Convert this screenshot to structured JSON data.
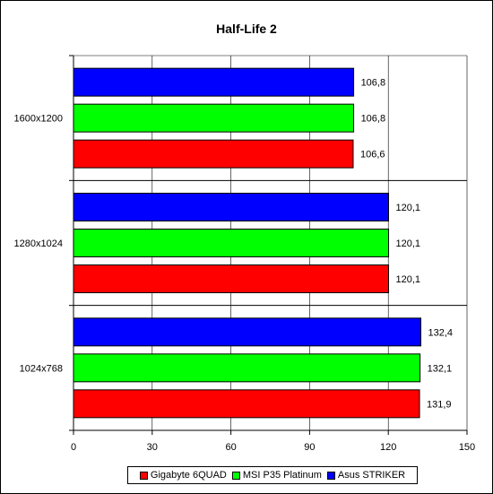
{
  "chart_data": {
    "type": "bar",
    "orientation": "horizontal",
    "title": "Half-Life 2",
    "categories": [
      "1600x1200",
      "1280x1024",
      "1024x768"
    ],
    "series": [
      {
        "name": "Asus STRIKER",
        "color": "#0000ff",
        "values": [
          106.8,
          120.1,
          132.4
        ],
        "labels": [
          "106,8",
          "120,1",
          "132,4"
        ]
      },
      {
        "name": "MSI P35 Platinum",
        "color": "#00ff00",
        "values": [
          106.8,
          120.1,
          132.1
        ],
        "labels": [
          "106,8",
          "120,1",
          "132,1"
        ]
      },
      {
        "name": "Gigabyte 6QUAD",
        "color": "#ff0000",
        "values": [
          106.6,
          120.1,
          131.9
        ],
        "labels": [
          "106,6",
          "120,1",
          "131,9"
        ]
      }
    ],
    "xlim": [
      0,
      150
    ],
    "xticks": [
      0,
      30,
      60,
      90,
      120,
      150
    ],
    "grid": true,
    "legend_position": "bottom",
    "legend_order": [
      "Gigabyte 6QUAD",
      "MSI P35 Platinum",
      "Asus STRIKER"
    ]
  }
}
